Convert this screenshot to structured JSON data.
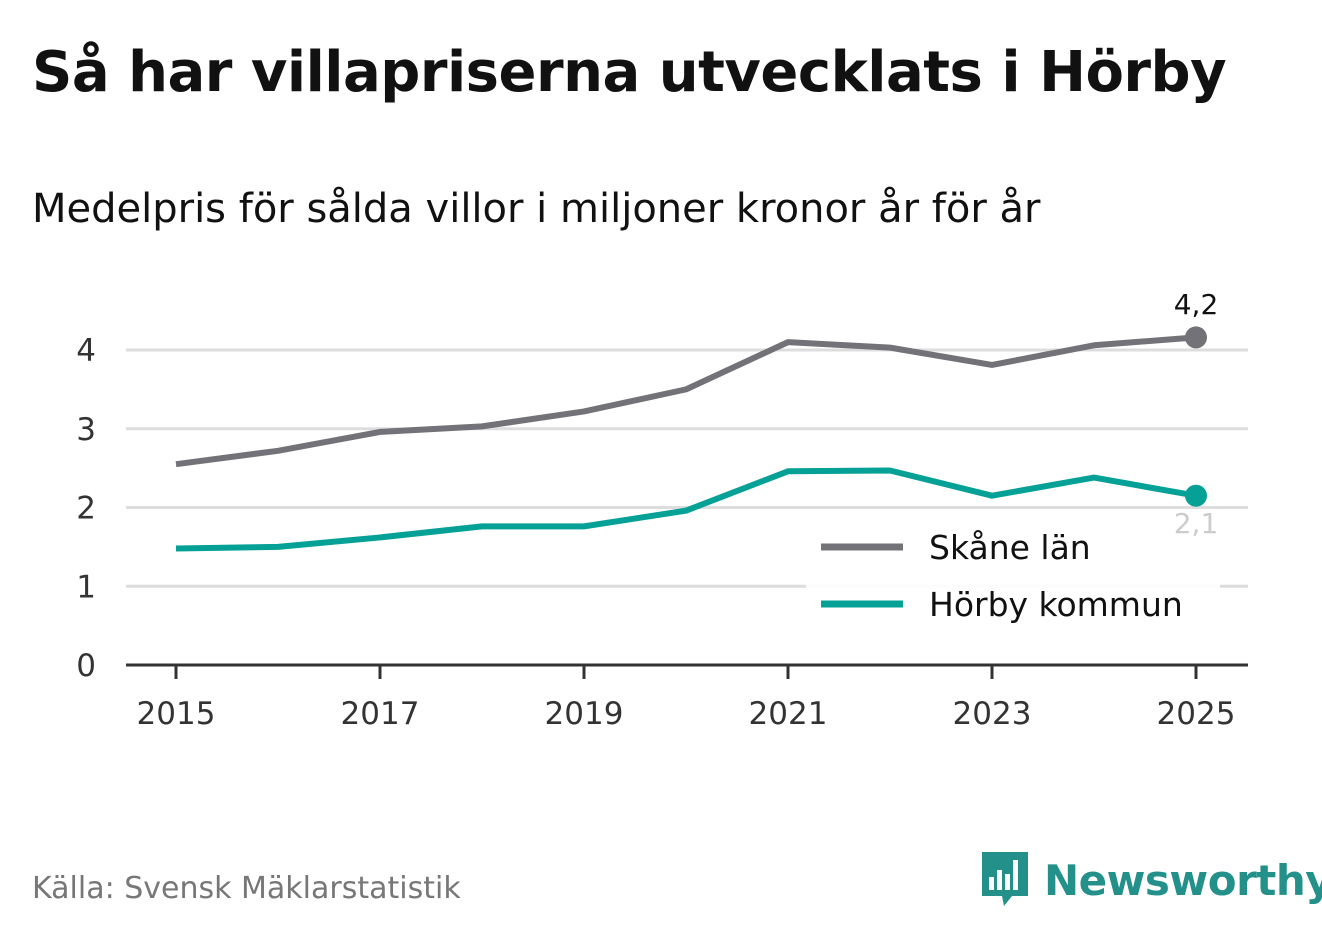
{
  "header": {
    "title": "Så har villapriserna utvecklats i Hörby",
    "subtitle": "Medelpris för sålda villor i miljoner kronor år för år"
  },
  "footer": {
    "source": "Källa: Svensk Mäklarstatistik",
    "brand": "Newsworthy",
    "brand_icon": "bar-chart-speech-bubble-icon"
  },
  "colors": {
    "skane": "#737278",
    "horby": "#06a196",
    "grid": "#dddddd",
    "axis": "#333333",
    "brand": "#23908a"
  },
  "chart_data": {
    "type": "line",
    "title": "Så har villapriserna utvecklats i Hörby",
    "subtitle": "Medelpris för sålda villor i miljoner kronor år för år",
    "x": [
      2015,
      2016,
      2017,
      2018,
      2019,
      2020,
      2021,
      2022,
      2023,
      2024,
      2025
    ],
    "x_ticks": [
      "2015",
      "2017",
      "2019",
      "2021",
      "2023",
      "2025"
    ],
    "y_ticks": [
      "0",
      "1",
      "2",
      "3",
      "4"
    ],
    "ylim": [
      0,
      4.4
    ],
    "grid": true,
    "legend_position": "bottom-right",
    "series": [
      {
        "name": "Skåne län",
        "color": "#737278",
        "values": [
          2.55,
          2.72,
          2.96,
          3.03,
          3.22,
          3.5,
          4.1,
          4.03,
          3.81,
          4.06,
          4.16
        ],
        "end_label": "4,2"
      },
      {
        "name": "Hörby kommun",
        "color": "#06a196",
        "values": [
          1.48,
          1.5,
          1.62,
          1.76,
          1.76,
          1.96,
          2.46,
          2.47,
          2.15,
          2.38,
          2.15
        ],
        "end_label": "2,1"
      }
    ]
  }
}
